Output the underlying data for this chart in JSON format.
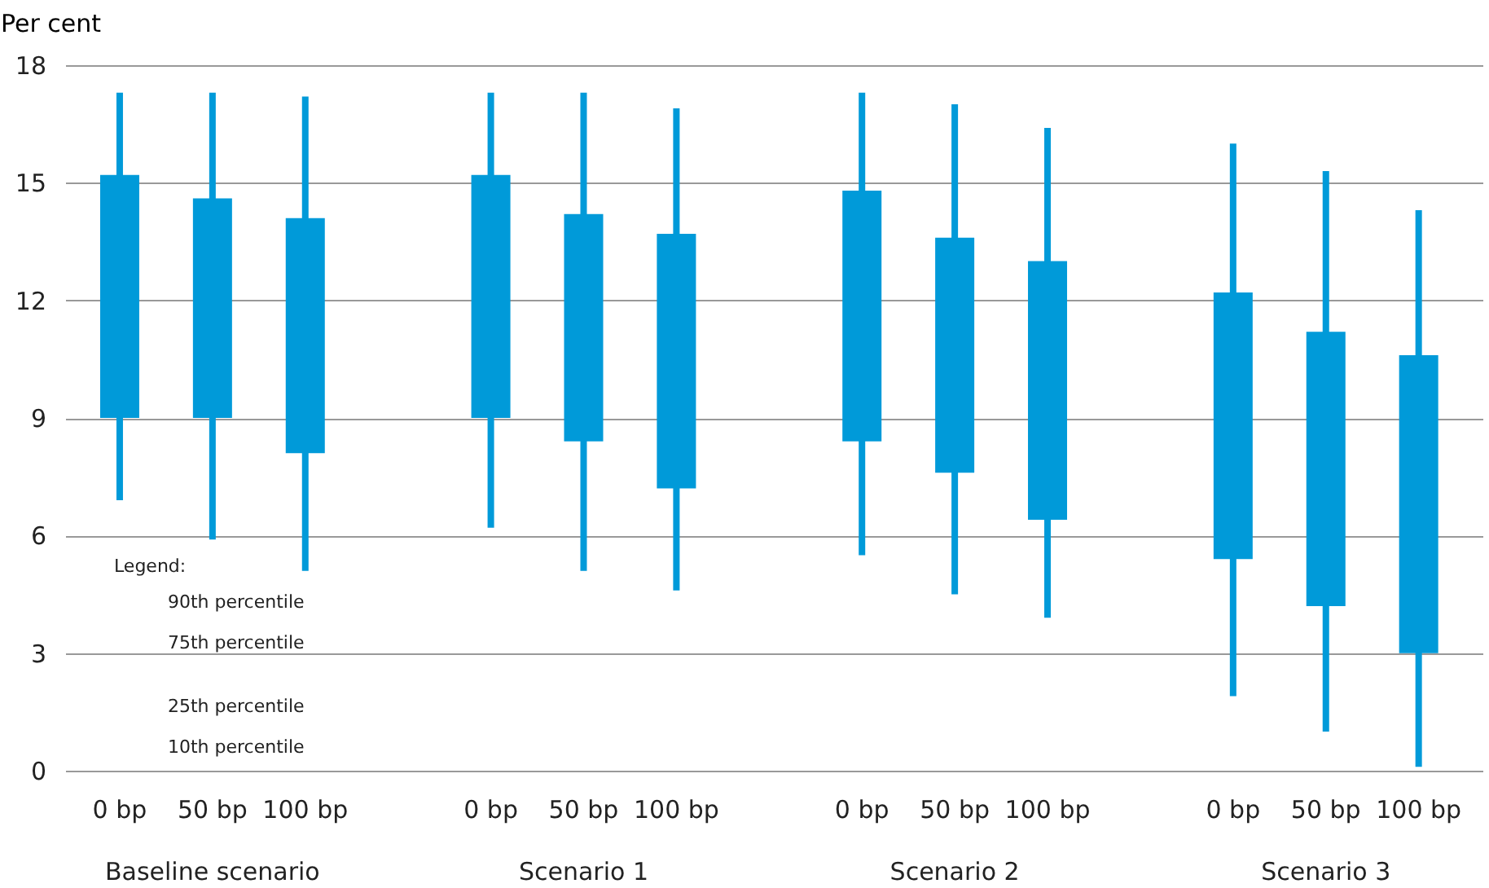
{
  "chart_data": {
    "type": "box",
    "ylabel": "Per cent",
    "categories": [
      "0 bp",
      "50 bp",
      "100 bp",
      "0 bp",
      "50 bp",
      "100 bp",
      "0 bp",
      "50 bp",
      "100 bp",
      "0 bp",
      "50 bp",
      "100 bp"
    ],
    "boxes": [
      {
        "low": 6.9,
        "q1": 9.0,
        "q3": 15.2,
        "high": 17.3
      },
      {
        "low": 5.9,
        "q1": 9.0,
        "q3": 14.6,
        "high": 17.3
      },
      {
        "low": 5.1,
        "q1": 8.1,
        "q3": 14.1,
        "high": 17.2
      },
      {
        "low": 6.2,
        "q1": 9.0,
        "q3": 15.2,
        "high": 17.3
      },
      {
        "low": 5.1,
        "q1": 8.4,
        "q3": 14.2,
        "high": 17.3
      },
      {
        "low": 4.6,
        "q1": 7.2,
        "q3": 13.7,
        "high": 16.9
      },
      {
        "low": 5.5,
        "q1": 8.4,
        "q3": 14.8,
        "high": 17.3
      },
      {
        "low": 4.5,
        "q1": 7.6,
        "q3": 13.6,
        "high": 17.0
      },
      {
        "low": 3.9,
        "q1": 6.4,
        "q3": 13.0,
        "high": 16.4
      },
      {
        "low": 1.9,
        "q1": 5.4,
        "q3": 12.2,
        "high": 16.0
      },
      {
        "low": 1.0,
        "q1": 4.2,
        "q3": 11.2,
        "high": 15.3
      },
      {
        "low": 0.1,
        "q1": 3.0,
        "q3": 10.6,
        "high": 14.3
      }
    ],
    "color": "#009ad9",
    "ylim": [
      0,
      18
    ],
    "yticks": [
      0,
      3,
      6,
      9,
      12,
      15,
      18
    ],
    "grid": "y",
    "annotations": [
      "Baseline scenario",
      "Scenario 1",
      "Scenario 2",
      "Scenario 3",
      "Legend:",
      "90th percentile",
      "75th percentile",
      "25th percentile",
      "10th percentile"
    ]
  }
}
